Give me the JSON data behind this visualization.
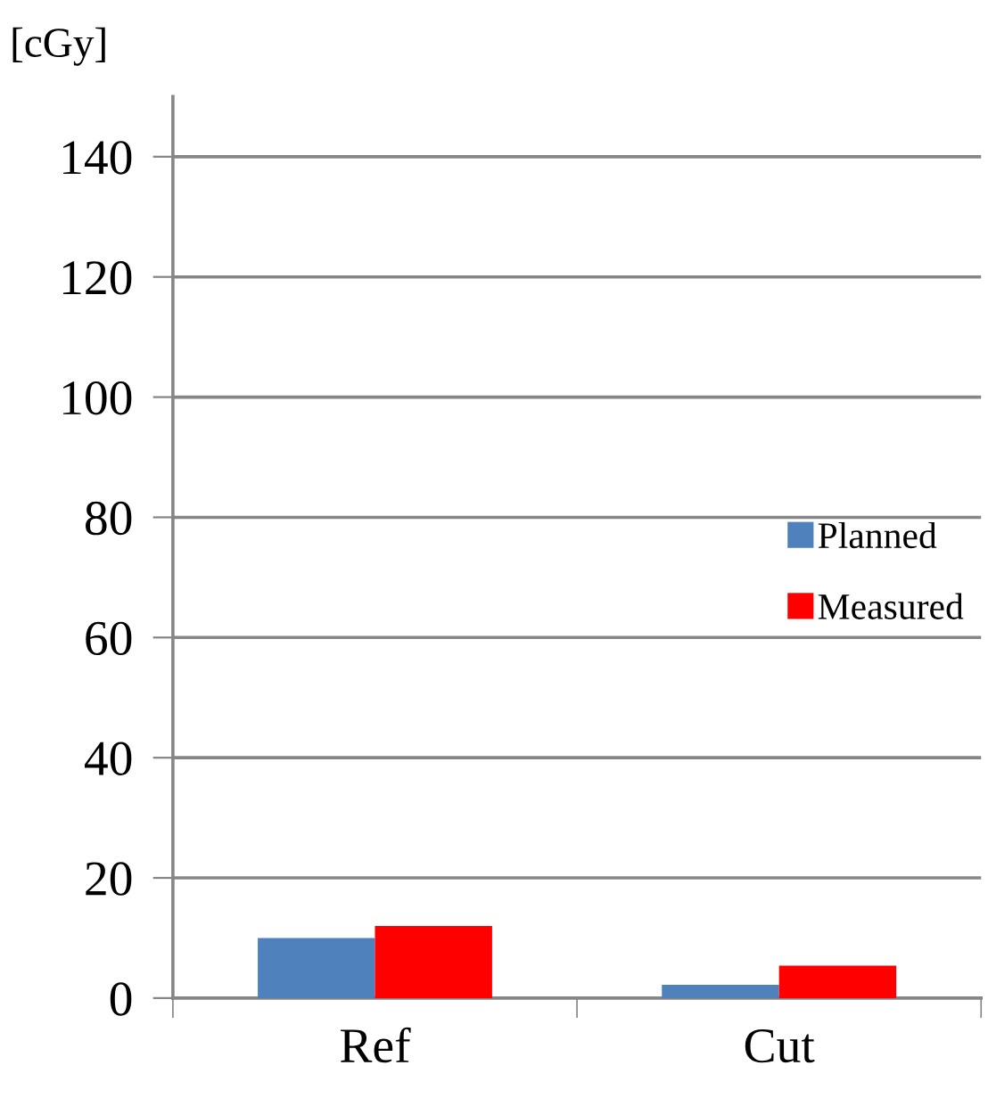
{
  "chart_data": {
    "type": "bar",
    "ylabel": "[cGy]",
    "categories": [
      "Ref",
      "Cut"
    ],
    "series": [
      {
        "name": "Planned",
        "color": "#4f81bd",
        "values": [
          10,
          2.2
        ]
      },
      {
        "name": "Measured",
        "color": "#ff0000",
        "values": [
          12,
          5.4
        ]
      }
    ],
    "ylim": [
      0,
      150
    ],
    "yticks": [
      0,
      20,
      40,
      60,
      80,
      100,
      120,
      140
    ],
    "grid": "y",
    "legend": "right"
  }
}
